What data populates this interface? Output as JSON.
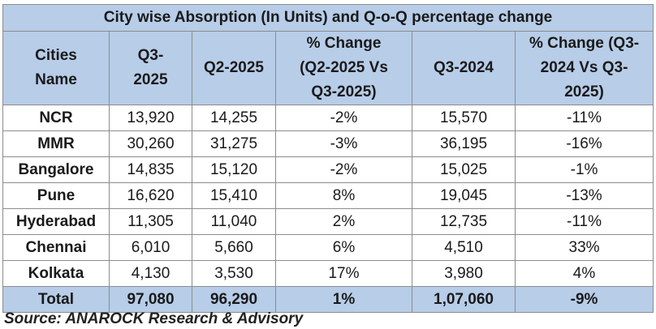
{
  "title": "City wise Absorption (In Units) and Q-o-Q percentage change",
  "headers": [
    [
      "Cities",
      "Name"
    ],
    [
      "Q3-",
      "2025"
    ],
    [
      "Q2-2025"
    ],
    [
      "% Change",
      "(Q2-2025 Vs",
      "Q3-2025)"
    ],
    [
      "Q3-2024"
    ],
    [
      "% Change (Q3-",
      "2024 Vs Q3-",
      "2025)"
    ]
  ],
  "rows": [
    [
      "NCR",
      "13,920",
      "14,255",
      "-2%",
      "15,570",
      "-11%"
    ],
    [
      "MMR",
      "30,260",
      "31,275",
      "-3%",
      "36,195",
      "-16%"
    ],
    [
      "Bangalore",
      "14,835",
      "15,120",
      "-2%",
      "15,025",
      "-1%"
    ],
    [
      "Pune",
      "16,620",
      "15,410",
      "8%",
      "19,045",
      "-13%"
    ],
    [
      "Hyderabad",
      "11,305",
      "11,040",
      "2%",
      "12,735",
      "-11%"
    ],
    [
      "Chennai",
      "6,010",
      "5,660",
      "6%",
      "4,510",
      "33%"
    ],
    [
      "Kolkata",
      "4,130",
      "3,530",
      "17%",
      "3,980",
      "4%"
    ]
  ],
  "total": [
    "Total",
    "97,080",
    "96,290",
    "1%",
    "1,07,060",
    "-9%"
  ],
  "source": "Source: ANAROCK Research & Advisory",
  "colors": {
    "header_bg": "#b7cde8",
    "border": "#8c8c8c"
  }
}
